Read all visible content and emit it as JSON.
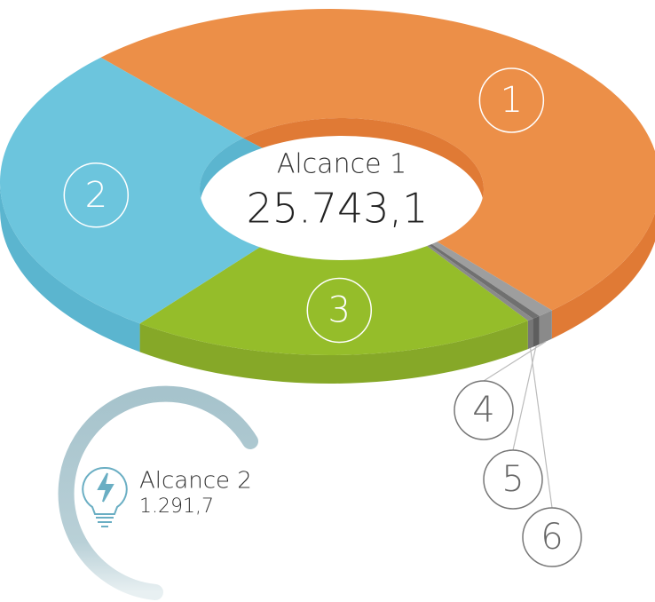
{
  "chart_data": {
    "type": "donut3d",
    "categories": [
      "1",
      "4",
      "5",
      "6",
      "3",
      "2"
    ],
    "values": [
      50.5,
      0.8,
      0.4,
      0.3,
      20,
      28
    ],
    "colors": [
      "#ec8f48",
      "#9e9e9e",
      "#707070",
      "#8a8a8a",
      "#95bd2a",
      "#6cc5dd"
    ],
    "side_colors": [
      "#e07a35",
      "#8a8a8a",
      "#5e5e5e",
      "#767676",
      "#86a828",
      "#5bb5cf"
    ],
    "start_angle": -134,
    "center_label": "Alcance 1",
    "center_value": "25.743,1"
  },
  "secondary": {
    "label": "Alcance 2",
    "value": "1.291,7"
  }
}
